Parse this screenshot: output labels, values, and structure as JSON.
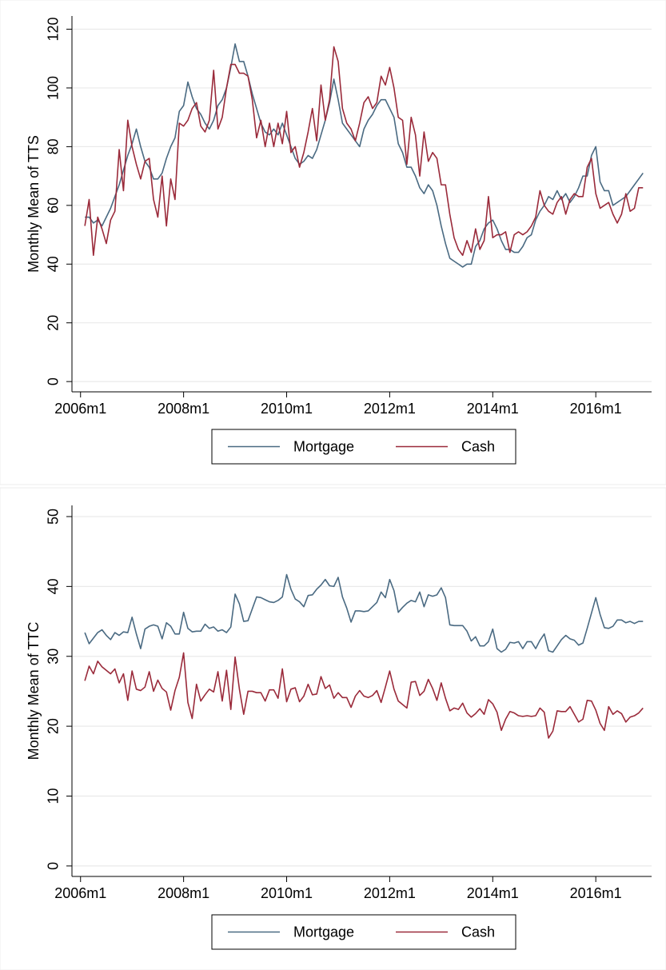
{
  "chart_data": [
    {
      "type": "line",
      "y_label": "Monthly Mean of TTS",
      "x": [
        "2006m2",
        "2006m3",
        "2006m4",
        "2006m5",
        "2006m6",
        "2006m7",
        "2006m8",
        "2006m9",
        "2006m10",
        "2006m11",
        "2006m12",
        "2007m1",
        "2007m2",
        "2007m3",
        "2007m4",
        "2007m5",
        "2007m6",
        "2007m7",
        "2007m8",
        "2007m9",
        "2007m10",
        "2007m11",
        "2007m12",
        "2008m1",
        "2008m2",
        "2008m3",
        "2008m4",
        "2008m5",
        "2008m6",
        "2008m7",
        "2008m8",
        "2008m9",
        "2008m10",
        "2008m11",
        "2008m12",
        "2009m1",
        "2009m2",
        "2009m3",
        "2009m4",
        "2009m5",
        "2009m6",
        "2009m7",
        "2009m8",
        "2009m9",
        "2009m10",
        "2009m11",
        "2009m12",
        "2010m1",
        "2010m2",
        "2010m3",
        "2010m4",
        "2010m5",
        "2010m6",
        "2010m7",
        "2010m8",
        "2010m9",
        "2010m10",
        "2010m11",
        "2010m12",
        "2011m1",
        "2011m2",
        "2011m3",
        "2011m4",
        "2011m5",
        "2011m6",
        "2011m7",
        "2011m8",
        "2011m9",
        "2011m10",
        "2011m11",
        "2011m12",
        "2012m1",
        "2012m2",
        "2012m3",
        "2012m4",
        "2012m5",
        "2012m6",
        "2012m7",
        "2012m8",
        "2012m9",
        "2012m10",
        "2012m11",
        "2012m12",
        "2013m1",
        "2013m2",
        "2013m3",
        "2013m4",
        "2013m5",
        "2013m6",
        "2013m7",
        "2013m8",
        "2013m9",
        "2013m10",
        "2013m11",
        "2013m12",
        "2014m1",
        "2014m2",
        "2014m3",
        "2014m4",
        "2014m5",
        "2014m6",
        "2014m7",
        "2014m8",
        "2014m9",
        "2014m10",
        "2014m11",
        "2014m12",
        "2015m1",
        "2015m2",
        "2015m3",
        "2015m4",
        "2015m5",
        "2015m6",
        "2015m7",
        "2015m8",
        "2015m9",
        "2015m10",
        "2015m11",
        "2015m12",
        "2016m1",
        "2016m2",
        "2016m3",
        "2016m4",
        "2016m5",
        "2016m6",
        "2016m7",
        "2016m8",
        "2016m9",
        "2016m10",
        "2016m11",
        "2016m12"
      ],
      "series": [
        {
          "name": "Mortgage",
          "color": "#4a6a82",
          "values": [
            56,
            56,
            54,
            55,
            53,
            56,
            59,
            63,
            67,
            72,
            77,
            81,
            86,
            80,
            75,
            73,
            69,
            69,
            71,
            76,
            80,
            83,
            92,
            94,
            102,
            97,
            93,
            91,
            88,
            86,
            89,
            94,
            96,
            100,
            107,
            115,
            109,
            109,
            104,
            98,
            93,
            88,
            85,
            84,
            86,
            84,
            88,
            84,
            80,
            76,
            74,
            75,
            77,
            76,
            79,
            84,
            89,
            95,
            103,
            96,
            88,
            86,
            84,
            82,
            80,
            86,
            89,
            91,
            94,
            96,
            96,
            93,
            90,
            81,
            78,
            73,
            73,
            70,
            66,
            64,
            67,
            65,
            60,
            53,
            47,
            42,
            41,
            40,
            39,
            40,
            40,
            46,
            48,
            52,
            54,
            55,
            52,
            48,
            45,
            45,
            44,
            44,
            46,
            49,
            50,
            55,
            58,
            60,
            63,
            62,
            65,
            62,
            64,
            61,
            63,
            66,
            70,
            70,
            77,
            80,
            68,
            65,
            65,
            60,
            61,
            62,
            63,
            65,
            67,
            69,
            71
          ]
        },
        {
          "name": "Cash",
          "color": "#9a2a3a",
          "values": [
            53,
            62,
            43,
            56,
            52,
            47,
            55,
            58,
            79,
            65,
            89,
            80,
            74,
            69,
            75,
            76,
            62,
            56,
            70,
            53,
            69,
            62,
            88,
            87,
            89,
            93,
            95,
            87,
            85,
            89,
            106,
            86,
            90,
            100,
            108,
            108,
            105,
            105,
            104,
            96,
            83,
            89,
            80,
            88,
            80,
            88,
            81,
            92,
            78,
            80,
            73,
            78,
            85,
            93,
            82,
            101,
            89,
            96,
            114,
            109,
            93,
            88,
            86,
            82,
            88,
            95,
            97,
            93,
            95,
            104,
            101,
            107,
            100,
            90,
            89,
            74,
            90,
            84,
            70,
            85,
            75,
            78,
            76,
            67,
            67,
            57,
            49,
            45,
            43,
            48,
            44,
            52,
            45,
            48,
            63,
            49,
            50,
            50,
            51,
            44,
            50,
            51,
            50,
            51,
            53,
            56,
            65,
            60,
            58,
            57,
            61,
            63,
            57,
            62,
            64,
            63,
            63,
            73,
            76,
            64,
            59,
            60,
            61,
            57,
            54,
            57,
            64,
            58,
            59,
            66,
            66
          ]
        }
      ],
      "xlim": [
        "2005m11",
        "2017m2"
      ],
      "xticks": [
        "2006m1",
        "2008m1",
        "2010m1",
        "2012m1",
        "2014m1",
        "2016m1"
      ],
      "ylim": [
        -3.5,
        124.5
      ],
      "yticks": [
        0,
        20,
        40,
        60,
        80,
        100,
        120
      ],
      "grid": true
    },
    {
      "type": "line",
      "y_label": "Monthly Mean of TTC",
      "x": [
        "2006m2",
        "2006m3",
        "2006m4",
        "2006m5",
        "2006m6",
        "2006m7",
        "2006m8",
        "2006m9",
        "2006m10",
        "2006m11",
        "2006m12",
        "2007m1",
        "2007m2",
        "2007m3",
        "2007m4",
        "2007m5",
        "2007m6",
        "2007m7",
        "2007m8",
        "2007m9",
        "2007m10",
        "2007m11",
        "2007m12",
        "2008m1",
        "2008m2",
        "2008m3",
        "2008m4",
        "2008m5",
        "2008m6",
        "2008m7",
        "2008m8",
        "2008m9",
        "2008m10",
        "2008m11",
        "2008m12",
        "2009m1",
        "2009m2",
        "2009m3",
        "2009m4",
        "2009m5",
        "2009m6",
        "2009m7",
        "2009m8",
        "2009m9",
        "2009m10",
        "2009m11",
        "2009m12",
        "2010m1",
        "2010m2",
        "2010m3",
        "2010m4",
        "2010m5",
        "2010m6",
        "2010m7",
        "2010m8",
        "2010m9",
        "2010m10",
        "2010m11",
        "2010m12",
        "2011m1",
        "2011m2",
        "2011m3",
        "2011m4",
        "2011m5",
        "2011m6",
        "2011m7",
        "2011m8",
        "2011m9",
        "2011m10",
        "2011m11",
        "2011m12",
        "2012m1",
        "2012m2",
        "2012m3",
        "2012m4",
        "2012m5",
        "2012m6",
        "2012m7",
        "2012m8",
        "2012m9",
        "2012m10",
        "2012m11",
        "2012m12",
        "2013m1",
        "2013m2",
        "2013m3",
        "2013m4",
        "2013m5",
        "2013m6",
        "2013m7",
        "2013m8",
        "2013m9",
        "2013m10",
        "2013m11",
        "2013m12",
        "2014m1",
        "2014m2",
        "2014m3",
        "2014m4",
        "2014m5",
        "2014m6",
        "2014m7",
        "2014m8",
        "2014m9",
        "2014m10",
        "2014m11",
        "2014m12",
        "2015m1",
        "2015m2",
        "2015m3",
        "2015m4",
        "2015m5",
        "2015m6",
        "2015m7",
        "2015m8",
        "2015m9",
        "2015m10",
        "2015m11",
        "2015m12",
        "2016m1",
        "2016m2",
        "2016m3",
        "2016m4",
        "2016m5",
        "2016m6",
        "2016m7",
        "2016m8",
        "2016m9",
        "2016m10",
        "2016m11",
        "2016m12"
      ],
      "series": [
        {
          "name": "Mortgage",
          "color": "#4a6a82",
          "values": [
            33.4,
            31.8,
            32.6,
            33.4,
            33.8,
            33.0,
            32.4,
            33.4,
            33.0,
            33.5,
            33.4,
            35.6,
            33.2,
            31.1,
            33.9,
            34.3,
            34.5,
            34.3,
            32.5,
            34.8,
            34.3,
            33.2,
            33.2,
            36.3,
            34.0,
            33.5,
            33.6,
            33.6,
            34.6,
            34.0,
            34.2,
            33.6,
            33.8,
            33.4,
            34.2,
            38.9,
            37.5,
            35.0,
            35.1,
            36.8,
            38.5,
            38.4,
            38.1,
            37.8,
            37.7,
            38.0,
            38.5,
            41.7,
            39.6,
            38.2,
            37.8,
            37.1,
            38.7,
            38.8,
            39.6,
            40.2,
            41.0,
            40.1,
            40.0,
            41.3,
            38.5,
            36.9,
            34.9,
            36.5,
            36.5,
            36.4,
            36.5,
            37.1,
            37.7,
            39.2,
            38.4,
            41.0,
            39.4,
            36.3,
            37.0,
            37.6,
            38.0,
            37.8,
            39.2,
            37.1,
            38.8,
            38.6,
            38.8,
            39.8,
            38.4,
            34.5,
            34.4,
            34.4,
            34.4,
            33.6,
            32.2,
            32.8,
            31.5,
            31.5,
            32.1,
            33.9,
            31.1,
            30.6,
            31.0,
            32.0,
            31.9,
            32.1,
            31.1,
            32.1,
            32.1,
            31.1,
            32.3,
            33.2,
            30.8,
            30.6,
            31.5,
            32.4,
            33.0,
            32.5,
            32.3,
            31.6,
            31.9,
            34.0,
            36.2,
            38.4,
            36.0,
            34.1,
            34.0,
            34.3,
            35.2,
            35.2,
            34.8,
            35.0,
            34.7,
            35.0,
            35.0
          ]
        },
        {
          "name": "Cash",
          "color": "#9a2a3a",
          "values": [
            26.5,
            28.6,
            27.5,
            29.3,
            28.5,
            28.0,
            27.5,
            28.2,
            26.2,
            27.5,
            23.7,
            27.9,
            25.3,
            25.1,
            25.6,
            27.8,
            25.0,
            26.6,
            25.4,
            24.9,
            22.3,
            25.1,
            27.0,
            30.5,
            23.4,
            21.1,
            26.0,
            23.6,
            24.5,
            25.3,
            24.9,
            27.8,
            23.6,
            28.0,
            22.4,
            29.9,
            25.3,
            21.7,
            25.0,
            25.0,
            24.8,
            24.8,
            23.6,
            25.2,
            25.2,
            24.0,
            28.2,
            23.5,
            25.3,
            25.5,
            23.5,
            24.3,
            26.0,
            24.5,
            24.6,
            27.1,
            25.4,
            25.9,
            24.0,
            24.8,
            24.1,
            24.1,
            22.7,
            24.3,
            25.1,
            24.3,
            24.1,
            24.4,
            25.1,
            23.4,
            25.6,
            27.9,
            25.3,
            23.6,
            23.1,
            22.6,
            26.3,
            26.4,
            24.4,
            25.0,
            26.7,
            25.4,
            23.7,
            26.2,
            24.0,
            22.2,
            22.6,
            22.4,
            23.3,
            21.9,
            21.3,
            21.8,
            22.5,
            21.7,
            23.8,
            23.2,
            22.0,
            19.4,
            21.0,
            22.1,
            21.9,
            21.5,
            21.4,
            21.5,
            21.4,
            21.5,
            22.6,
            22.0,
            18.3,
            19.3,
            22.2,
            22.1,
            22.1,
            22.8,
            21.7,
            20.6,
            21.0,
            23.7,
            23.6,
            22.3,
            20.4,
            19.4,
            22.8,
            21.7,
            22.2,
            21.8,
            20.6,
            21.3,
            21.5,
            21.9,
            22.6
          ]
        }
      ],
      "xlim": [
        "2005m11",
        "2017m2"
      ],
      "xticks": [
        "2006m1",
        "2008m1",
        "2010m1",
        "2012m1",
        "2014m1",
        "2016m1"
      ],
      "ylim": [
        -1.5,
        51.6
      ],
      "yticks": [
        0,
        10,
        20,
        30,
        40,
        50
      ],
      "grid": true
    }
  ]
}
